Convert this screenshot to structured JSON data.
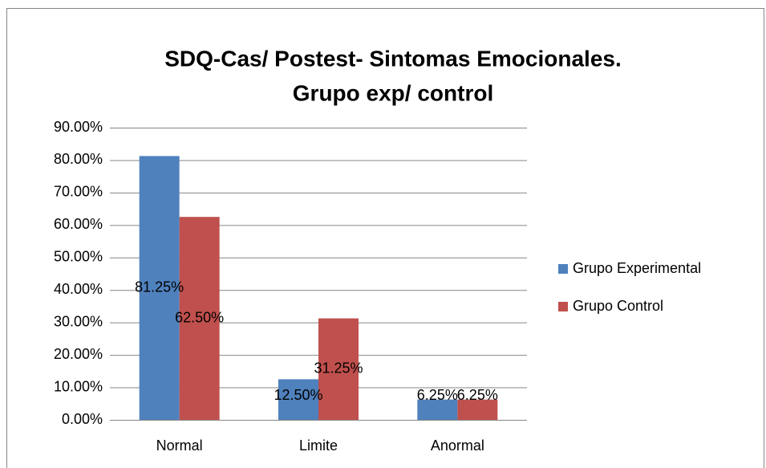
{
  "chart_data": {
    "type": "bar",
    "title": [
      "SDQ-Cas/  Postest- Sintomas Emocionales.",
      "Grupo exp/ control"
    ],
    "categories": [
      "Normal",
      "Limite",
      "Anormal"
    ],
    "series": [
      {
        "name": "Grupo Experimental",
        "color": "#4f81bd",
        "values": [
          81.25,
          12.5,
          6.25
        ],
        "value_labels": [
          "81.25%",
          "12.50%",
          "6.25%"
        ]
      },
      {
        "name": "Grupo Control",
        "color": "#c0504d",
        "values": [
          62.5,
          31.25,
          6.25
        ],
        "value_labels": [
          "62.50%",
          "31.25%",
          "6.25%"
        ]
      }
    ],
    "ylim": [
      0,
      90
    ],
    "yticks": [
      {
        "value": 0,
        "label": "0.00%"
      },
      {
        "value": 10,
        "label": "10.00%"
      },
      {
        "value": 20,
        "label": "20.00%"
      },
      {
        "value": 30,
        "label": "30.00%"
      },
      {
        "value": 40,
        "label": "40.00%"
      },
      {
        "value": 50,
        "label": "50.00%"
      },
      {
        "value": 60,
        "label": "60.00%"
      },
      {
        "value": 70,
        "label": "70.00%"
      },
      {
        "value": 80,
        "label": "80.00%"
      },
      {
        "value": 90,
        "label": "90.00%"
      }
    ],
    "grid": true,
    "legend": "right"
  }
}
